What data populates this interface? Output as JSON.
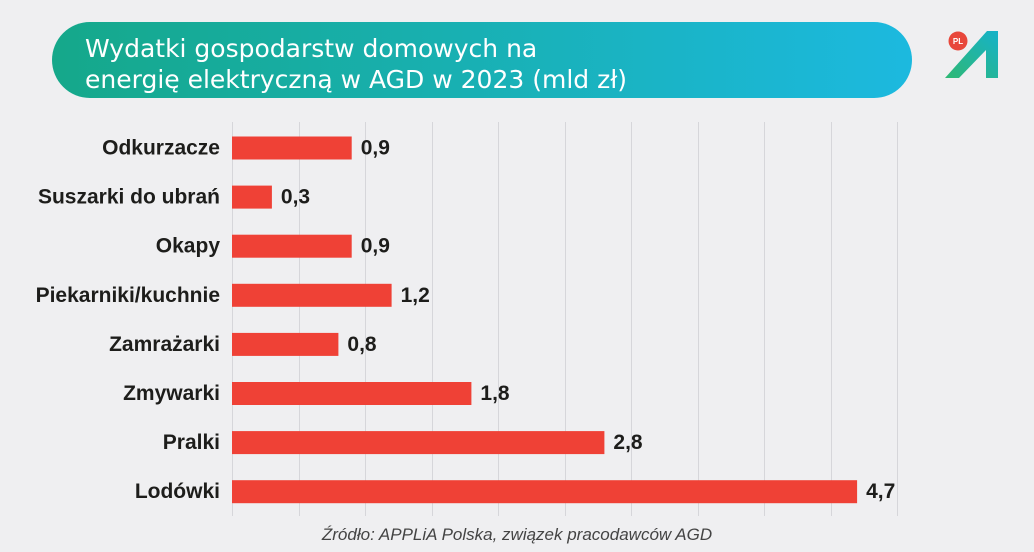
{
  "logo": {
    "badge": "PL",
    "icon": "applia-a-logo-icon"
  },
  "colors": {
    "background": "#efeff1",
    "banner_start": "#15a88a",
    "banner_end": "#1cb9df",
    "title_text": "#ffffff",
    "bar": "#ef4136",
    "label_text": "#1d1d1b",
    "grid": "#d6d6da",
    "source_text": "#444444",
    "badge": "#e8473b",
    "logo_start": "#2fb874",
    "logo_end": "#16b2c9"
  },
  "chart_data": {
    "type": "bar",
    "orientation": "horizontal",
    "title_lines": [
      "Wydatki gospodarstw domowych na",
      "energię elektryczną w AGD w 2023 (mld zł)"
    ],
    "categories": [
      "Odkurzacze",
      "Suszarki do ubrań",
      "Okapy",
      "Piekarniki/kuchnie",
      "Zamrażarki",
      "Zmywarki",
      "Pralki",
      "Lodówki"
    ],
    "values": [
      0.9,
      0.3,
      0.9,
      1.2,
      0.8,
      1.8,
      2.8,
      4.7
    ],
    "value_labels": [
      "0,9",
      "0,3",
      "0,9",
      "1,2",
      "0,8",
      "1,8",
      "2,8",
      "4,7"
    ],
    "xlim": [
      0,
      5
    ],
    "grid": true,
    "grid_step": 0.5,
    "x_tick_labels_shown": false,
    "legend": "none",
    "source": "Źródło: APPLiA Polska, związek pracodawców AGD"
  }
}
